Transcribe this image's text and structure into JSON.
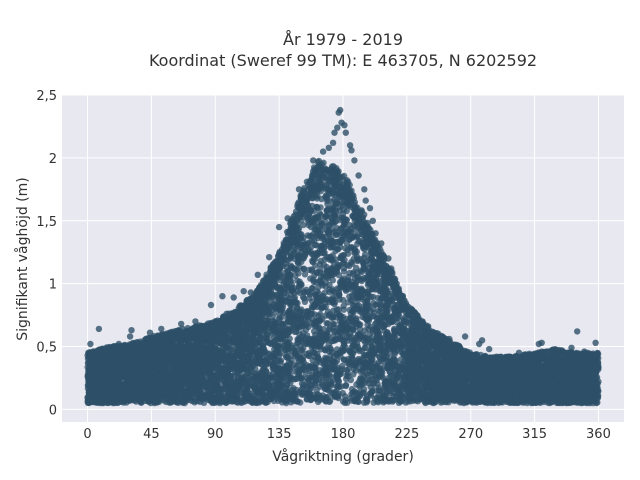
{
  "chart_data": {
    "type": "scatter",
    "title_line1": "År 1979 - 2019",
    "title_line2": "Koordinat (Sweref 99 TM): E 463705, N 6202592",
    "xlabel": "Vågriktning (grader)",
    "ylabel": "Signifikant våghöjd (m)",
    "xlim": [
      -18,
      378
    ],
    "ylim": [
      -0.1,
      2.5
    ],
    "xticks": [
      0,
      45,
      90,
      135,
      180,
      225,
      270,
      315,
      360
    ],
    "xtick_labels": [
      "0",
      "45",
      "90",
      "135",
      "180",
      "225",
      "270",
      "315",
      "360"
    ],
    "yticks": [
      0,
      0.5,
      1,
      1.5,
      2,
      2.5
    ],
    "ytick_labels": [
      "0",
      "0,5",
      "1",
      "1,5",
      "2",
      "2,5"
    ],
    "grid": true,
    "marker_color": "#2e5068",
    "envelope": {
      "direction": [
        0,
        15,
        30,
        45,
        60,
        75,
        90,
        105,
        120,
        135,
        150,
        160,
        165,
        170,
        180,
        195,
        210,
        225,
        240,
        255,
        270,
        285,
        300,
        315,
        330,
        345,
        360
      ],
      "max_height": [
        0.45,
        0.5,
        0.52,
        0.58,
        0.62,
        0.66,
        0.7,
        0.8,
        0.95,
        1.25,
        1.7,
        1.95,
        2.0,
        1.95,
        1.9,
        1.55,
        1.2,
        0.85,
        0.65,
        0.55,
        0.45,
        0.42,
        0.42,
        0.45,
        0.48,
        0.45,
        0.45
      ],
      "min_height": 0.05
    },
    "outliers": [
      {
        "x": 178,
        "y": 2.38
      },
      {
        "x": 177,
        "y": 2.36
      },
      {
        "x": 179,
        "y": 2.28
      },
      {
        "x": 181,
        "y": 2.26
      },
      {
        "x": 176,
        "y": 2.24
      },
      {
        "x": 174,
        "y": 2.2
      },
      {
        "x": 182,
        "y": 2.2
      },
      {
        "x": 173,
        "y": 2.12
      },
      {
        "x": 185,
        "y": 2.1
      },
      {
        "x": 170,
        "y": 2.08
      },
      {
        "x": 166,
        "y": 2.05
      },
      {
        "x": 186,
        "y": 2.06
      },
      {
        "x": 188,
        "y": 1.98
      },
      {
        "x": 159,
        "y": 1.98
      },
      {
        "x": 191,
        "y": 1.86
      },
      {
        "x": 195,
        "y": 1.75
      },
      {
        "x": 196,
        "y": 1.66
      },
      {
        "x": 199,
        "y": 1.6
      },
      {
        "x": 201,
        "y": 1.5
      },
      {
        "x": 203,
        "y": 1.4
      },
      {
        "x": 207,
        "y": 1.32
      },
      {
        "x": 212,
        "y": 1.2
      },
      {
        "x": 214,
        "y": 1.12
      },
      {
        "x": 221,
        "y": 0.9
      },
      {
        "x": 222,
        "y": 0.85
      },
      {
        "x": 229,
        "y": 0.74
      },
      {
        "x": 236,
        "y": 0.7
      },
      {
        "x": 240,
        "y": 0.66
      },
      {
        "x": 243,
        "y": 0.58
      },
      {
        "x": 255,
        "y": 0.56
      },
      {
        "x": 266,
        "y": 0.58
      },
      {
        "x": 276,
        "y": 0.52
      },
      {
        "x": 278,
        "y": 0.55
      },
      {
        "x": 283,
        "y": 0.48
      },
      {
        "x": 302,
        "y": 0.42
      },
      {
        "x": 304,
        "y": 0.45
      },
      {
        "x": 318,
        "y": 0.52
      },
      {
        "x": 320,
        "y": 0.53
      },
      {
        "x": 325,
        "y": 0.45
      },
      {
        "x": 335,
        "y": 0.43
      },
      {
        "x": 341,
        "y": 0.49
      },
      {
        "x": 345,
        "y": 0.62
      },
      {
        "x": 350,
        "y": 0.46
      },
      {
        "x": 358,
        "y": 0.53
      },
      {
        "x": 359,
        "y": 0.44
      },
      {
        "x": 8,
        "y": 0.64
      },
      {
        "x": 2,
        "y": 0.52
      },
      {
        "x": 12,
        "y": 0.45
      },
      {
        "x": 22,
        "y": 0.52
      },
      {
        "x": 30,
        "y": 0.58
      },
      {
        "x": 31,
        "y": 0.63
      },
      {
        "x": 44,
        "y": 0.61
      },
      {
        "x": 52,
        "y": 0.64
      },
      {
        "x": 66,
        "y": 0.68
      },
      {
        "x": 67,
        "y": 0.64
      },
      {
        "x": 76,
        "y": 0.7
      },
      {
        "x": 87,
        "y": 0.83
      },
      {
        "x": 95,
        "y": 0.9
      },
      {
        "x": 98,
        "y": 0.76
      },
      {
        "x": 103,
        "y": 0.89
      },
      {
        "x": 110,
        "y": 0.94
      },
      {
        "x": 115,
        "y": 0.93
      },
      {
        "x": 120,
        "y": 1.07
      },
      {
        "x": 128,
        "y": 1.21
      },
      {
        "x": 135,
        "y": 1.45
      },
      {
        "x": 141,
        "y": 1.52
      },
      {
        "x": 149,
        "y": 1.75
      }
    ]
  }
}
